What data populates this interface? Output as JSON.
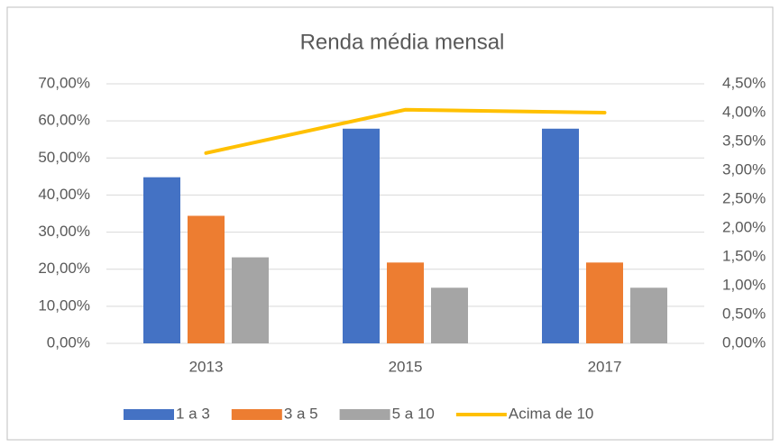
{
  "chart_data": {
    "type": "bar",
    "title": "Renda média mensal",
    "categories": [
      "2013",
      "2015",
      "2017"
    ],
    "series": [
      {
        "name": "1 a 3",
        "color": "#4472c4",
        "values": [
          44.8,
          57.9,
          57.9
        ]
      },
      {
        "name": "3 a 5",
        "color": "#ed7d31",
        "values": [
          34.4,
          21.8,
          21.8
        ]
      },
      {
        "name": "5 a 10",
        "color": "#a5a5a5",
        "values": [
          23.2,
          15.0,
          15.0
        ]
      },
      {
        "name": "Acima de 10",
        "color": "#ffc000",
        "values": [
          3.3,
          4.05,
          4.0
        ],
        "axis": "y2",
        "type": "line"
      }
    ],
    "ylim": [
      0,
      70
    ],
    "yticks": [
      {
        "value": 0,
        "label": "0,00%"
      },
      {
        "value": 10,
        "label": "10,00%"
      },
      {
        "value": 20,
        "label": "20,00%"
      },
      {
        "value": 30,
        "label": "30,00%"
      },
      {
        "value": 40,
        "label": "40,00%"
      },
      {
        "value": 50,
        "label": "50,00%"
      },
      {
        "value": 60,
        "label": "60,00%"
      },
      {
        "value": 70,
        "label": "70,00%"
      }
    ],
    "y2lim": [
      0,
      4.5
    ],
    "y2ticks": [
      {
        "value": 0,
        "label": "0,00%"
      },
      {
        "value": 0.5,
        "label": "0,50%"
      },
      {
        "value": 1,
        "label": "1,00%"
      },
      {
        "value": 1.5,
        "label": "1,50%"
      },
      {
        "value": 2,
        "label": "2,00%"
      },
      {
        "value": 2.5,
        "label": "2,50%"
      },
      {
        "value": 3,
        "label": "3,00%"
      },
      {
        "value": 3.5,
        "label": "3,50%"
      },
      {
        "value": 4,
        "label": "4,00%"
      },
      {
        "value": 4.5,
        "label": "4,50%"
      }
    ],
    "grid": true,
    "legend": "bottom"
  }
}
